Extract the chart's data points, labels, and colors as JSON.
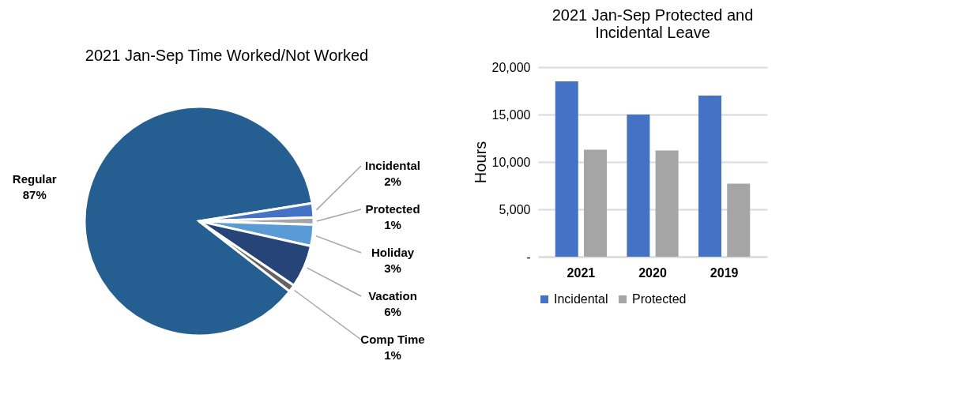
{
  "chart_data": [
    {
      "type": "pie",
      "title": "2021 Jan-Sep Time Worked/Not Worked",
      "categories": [
        "Regular",
        "Incidental",
        "Protected",
        "Holiday",
        "Vacation",
        "Comp Time"
      ],
      "values": [
        87,
        2,
        1,
        3,
        6,
        1
      ],
      "value_labels": [
        "87%",
        "2%",
        "1%",
        "3%",
        "6%",
        "1%"
      ],
      "colors": [
        "#255e91",
        "#4472c4",
        "#a5a5a5",
        "#5b9bd5",
        "#264478",
        "#636363"
      ]
    },
    {
      "type": "bar",
      "title": "2021 Jan-Sep Protected and Incidental Leave",
      "ylabel": "Hours",
      "categories": [
        "2021",
        "2020",
        "2019"
      ],
      "series": [
        {
          "name": "Incidental",
          "color": "#4472c4",
          "values": [
            18500,
            15000,
            17000
          ]
        },
        {
          "name": "Protected",
          "color": "#a5a5a5",
          "values": [
            11300,
            11200,
            7700
          ]
        }
      ],
      "ylim": [
        0,
        20000
      ],
      "yticks": [
        {
          "value": 0,
          "label": "-"
        },
        {
          "value": 5000,
          "label": "5,000"
        },
        {
          "value": 10000,
          "label": "10,000"
        },
        {
          "value": 15000,
          "label": "15,000"
        },
        {
          "value": 20000,
          "label": "20,000"
        }
      ],
      "grid": "y",
      "legend": "bottom"
    }
  ]
}
